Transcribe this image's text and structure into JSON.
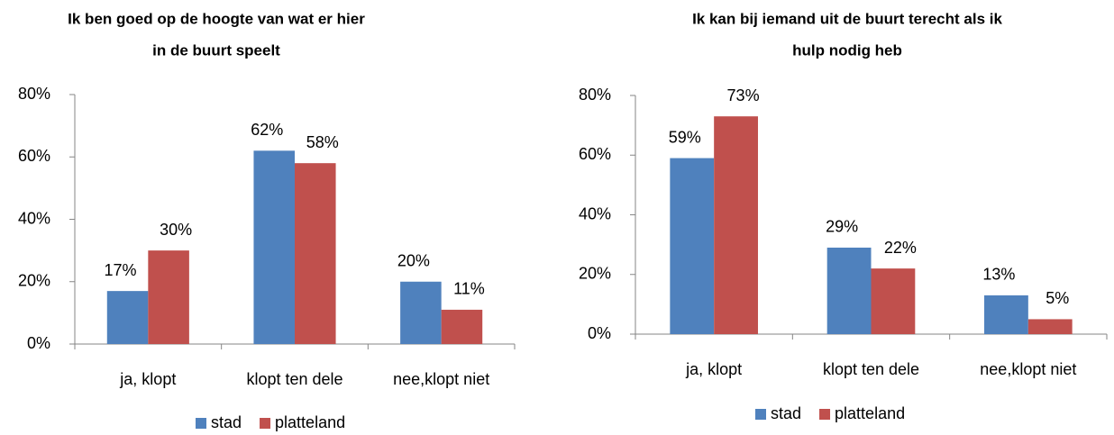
{
  "chart_data": [
    {
      "type": "bar",
      "title": [
        "Ik ben goed op de hoogte van wat er hier",
        "in de buurt speelt"
      ],
      "categories": [
        "ja, klopt",
        "klopt ten dele",
        "nee,klopt niet"
      ],
      "series": [
        {
          "name": "stad",
          "color": "#4f81bd",
          "values": [
            17,
            62,
            20
          ],
          "value_labels": [
            "17%",
            "62%",
            "20%"
          ]
        },
        {
          "name": "platteland",
          "color": "#c0504d",
          "values": [
            30,
            58,
            11
          ],
          "value_labels": [
            "30%",
            "58%",
            "11%"
          ]
        }
      ],
      "ylim": [
        0,
        80
      ],
      "yticks": [
        {
          "value": 0,
          "label": "0%"
        },
        {
          "value": 20,
          "label": "20%"
        },
        {
          "value": 40,
          "label": "40%"
        },
        {
          "value": 60,
          "label": "60%"
        },
        {
          "value": 80,
          "label": "80%"
        }
      ],
      "legend": "bottom"
    },
    {
      "type": "bar",
      "title": [
        "Ik kan bij iemand uit de buurt terecht als ik",
        "hulp nodig heb"
      ],
      "categories": [
        "ja, klopt",
        "klopt ten dele",
        "nee,klopt niet"
      ],
      "series": [
        {
          "name": "stad",
          "color": "#4f81bd",
          "values": [
            59,
            29,
            13
          ],
          "value_labels": [
            "59%",
            "29%",
            "13%"
          ]
        },
        {
          "name": "platteland",
          "color": "#c0504d",
          "values": [
            73,
            22,
            5
          ],
          "value_labels": [
            "73%",
            "22%",
            "5%"
          ]
        }
      ],
      "ylim": [
        0,
        80
      ],
      "yticks": [
        {
          "value": 0,
          "label": "0%"
        },
        {
          "value": 20,
          "label": "20%"
        },
        {
          "value": 40,
          "label": "40%"
        },
        {
          "value": 60,
          "label": "60%"
        },
        {
          "value": 80,
          "label": "80%"
        }
      ],
      "legend": "bottom"
    }
  ]
}
